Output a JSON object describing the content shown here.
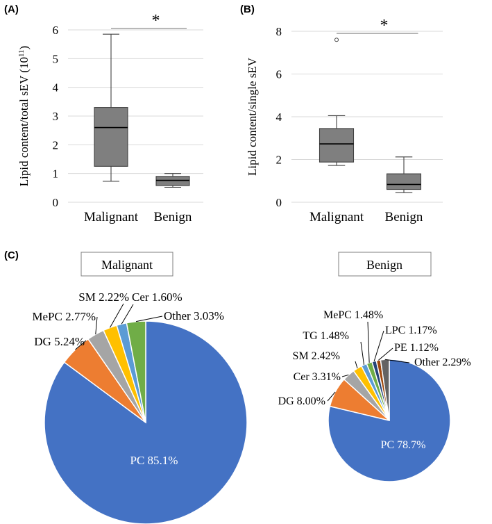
{
  "panel_labels": {
    "a": "(A)",
    "b": "(B)",
    "c": "(C)"
  },
  "chart_data": [
    {
      "type": "box",
      "panel": "(A)",
      "ylabel": "Lipid content/total sEV (10",
      "ylabel_sup": "11",
      "ylabel_close": ")",
      "ylim": [
        0,
        6
      ],
      "yticks": [
        "0",
        "1",
        "2",
        "3",
        "4",
        "5",
        "6"
      ],
      "categories": [
        "Malignant",
        "Benign"
      ],
      "boxes": [
        {
          "min": 0.73,
          "q1": 1.25,
          "median": 2.6,
          "q3": 3.3,
          "max": 5.85,
          "outliers": []
        },
        {
          "min": 0.52,
          "q1": 0.58,
          "median": 0.76,
          "q3": 0.9,
          "max": 1.0,
          "outliers": []
        }
      ],
      "significance": "*",
      "significance_y": 6.05,
      "grid": true
    },
    {
      "type": "box",
      "panel": "(B)",
      "ylabel": "Lipid content/single sEV",
      "ylim": [
        0,
        8
      ],
      "yticks": [
        "0",
        "2",
        "4",
        "6",
        "8"
      ],
      "categories": [
        "Malignant",
        "Benign"
      ],
      "boxes": [
        {
          "min": 1.72,
          "q1": 1.88,
          "median": 2.73,
          "q3": 3.45,
          "max": 4.05,
          "outliers": [
            7.6
          ]
        },
        {
          "min": 0.45,
          "q1": 0.6,
          "median": 0.83,
          "q3": 1.33,
          "max": 2.12,
          "outliers": []
        }
      ],
      "significance": "*",
      "significance_y": 7.9,
      "grid": true
    },
    {
      "type": "pie",
      "title": "Malignant",
      "slices": [
        {
          "label": "PC 85.1%",
          "value": 85.1,
          "color": "#4472c4"
        },
        {
          "label": "DG 5.24%",
          "value": 5.24,
          "color": "#ed7d31"
        },
        {
          "label": "MePC 2.77%",
          "value": 2.77,
          "color": "#a5a5a5"
        },
        {
          "label": "SM 2.22%",
          "value": 2.22,
          "color": "#ffc000"
        },
        {
          "label": "Cer 1.60%",
          "value": 1.6,
          "color": "#5b9bd5"
        },
        {
          "label": "Other 3.03%",
          "value": 3.03,
          "color": "#70ad47"
        }
      ]
    },
    {
      "type": "pie",
      "title": "Benign",
      "slices": [
        {
          "label": "PC 78.7%",
          "value": 78.7,
          "color": "#4472c4"
        },
        {
          "label": "DG 8.00%",
          "value": 8.0,
          "color": "#ed7d31"
        },
        {
          "label": "Cer 3.31%",
          "value": 3.31,
          "color": "#a5a5a5"
        },
        {
          "label": "SM 2.42%",
          "value": 2.42,
          "color": "#ffc000"
        },
        {
          "label": "TG 1.48%",
          "value": 1.48,
          "color": "#5b9bd5"
        },
        {
          "label": "MePC 1.48%",
          "value": 1.48,
          "color": "#70ad47"
        },
        {
          "label": "LPC 1.17%",
          "value": 1.17,
          "color": "#264478"
        },
        {
          "label": "PE 1.12%",
          "value": 1.12,
          "color": "#9e480e"
        },
        {
          "label": "Other 2.29%",
          "value": 2.29,
          "color": "#636363"
        }
      ]
    }
  ],
  "colors": {
    "box_fill": "#7f7f7f",
    "box_stroke": "#404040",
    "grid": "#d9d9d9",
    "axis": "#7f7f7f"
  }
}
